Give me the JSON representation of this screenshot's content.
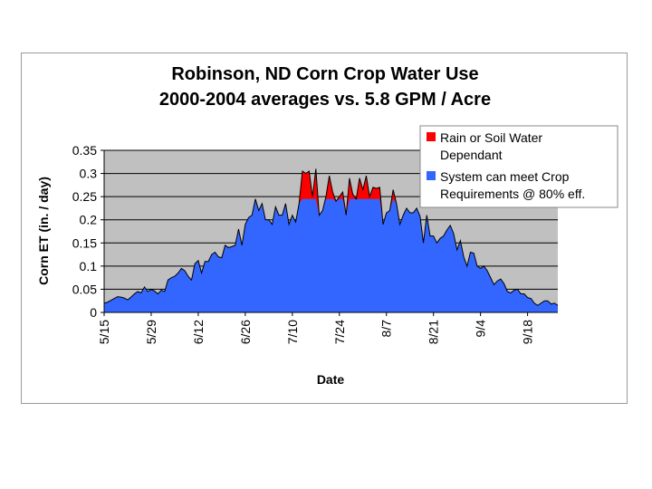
{
  "chart_data": {
    "type": "area",
    "title": "Robinson, ND Corn Crop Water Use",
    "subtitle": "2000-2004 averages vs. 5.8 GPM / Acre",
    "xlabel": "Date",
    "ylabel": "Corn ET (in. / day)",
    "ylim": [
      0,
      0.35
    ],
    "yticks": [
      "0",
      "0.05",
      "0.1",
      "0.15",
      "0.2",
      "0.25",
      "0.3",
      "0.35"
    ],
    "x_tick_labels": [
      "5/15",
      "5/29",
      "6/12",
      "6/26",
      "7/10",
      "7/24",
      "8/7",
      "8/21",
      "9/4",
      "9/18"
    ],
    "x_start": "5/15",
    "grid": true,
    "legend_position": "top-right",
    "system_capacity": 0.245,
    "series": [
      {
        "name": "Rain or Soil Water Dependant",
        "color": "#ff0000"
      },
      {
        "name": "System can meet Crop Requirements @ 80% eff.",
        "color": "#3366ff"
      }
    ],
    "legend_lines": [
      [
        "Rain or Soil Water",
        "Dependant"
      ],
      [
        "System can meet Crop",
        "Requirements @ 80% eff."
      ]
    ],
    "daily_et": [
      0.02,
      0.022,
      0.026,
      0.03,
      0.034,
      0.033,
      0.031,
      0.027,
      0.033,
      0.04,
      0.045,
      0.042,
      0.055,
      0.045,
      0.05,
      0.046,
      0.04,
      0.048,
      0.045,
      0.07,
      0.075,
      0.078,
      0.085,
      0.095,
      0.09,
      0.078,
      0.07,
      0.105,
      0.112,
      0.085,
      0.11,
      0.11,
      0.125,
      0.13,
      0.12,
      0.118,
      0.145,
      0.14,
      0.142,
      0.145,
      0.18,
      0.145,
      0.19,
      0.205,
      0.21,
      0.245,
      0.22,
      0.235,
      0.2,
      0.2,
      0.19,
      0.228,
      0.21,
      0.21,
      0.235,
      0.19,
      0.21,
      0.195,
      0.235,
      0.305,
      0.3,
      0.305,
      0.25,
      0.31,
      0.21,
      0.22,
      0.25,
      0.295,
      0.26,
      0.24,
      0.25,
      0.26,
      0.21,
      0.29,
      0.255,
      0.245,
      0.29,
      0.265,
      0.295,
      0.25,
      0.27,
      0.268,
      0.27,
      0.19,
      0.215,
      0.22,
      0.265,
      0.235,
      0.19,
      0.21,
      0.225,
      0.215,
      0.215,
      0.225,
      0.208,
      0.15,
      0.21,
      0.165,
      0.165,
      0.15,
      0.16,
      0.165,
      0.178,
      0.188,
      0.17,
      0.135,
      0.155,
      0.12,
      0.1,
      0.13,
      0.128,
      0.1,
      0.095,
      0.1,
      0.09,
      0.075,
      0.06,
      0.068,
      0.072,
      0.062,
      0.045,
      0.042,
      0.048,
      0.05,
      0.04,
      0.04,
      0.032,
      0.03,
      0.02,
      0.015,
      0.02,
      0.025,
      0.025,
      0.018,
      0.02,
      0.015
    ]
  }
}
